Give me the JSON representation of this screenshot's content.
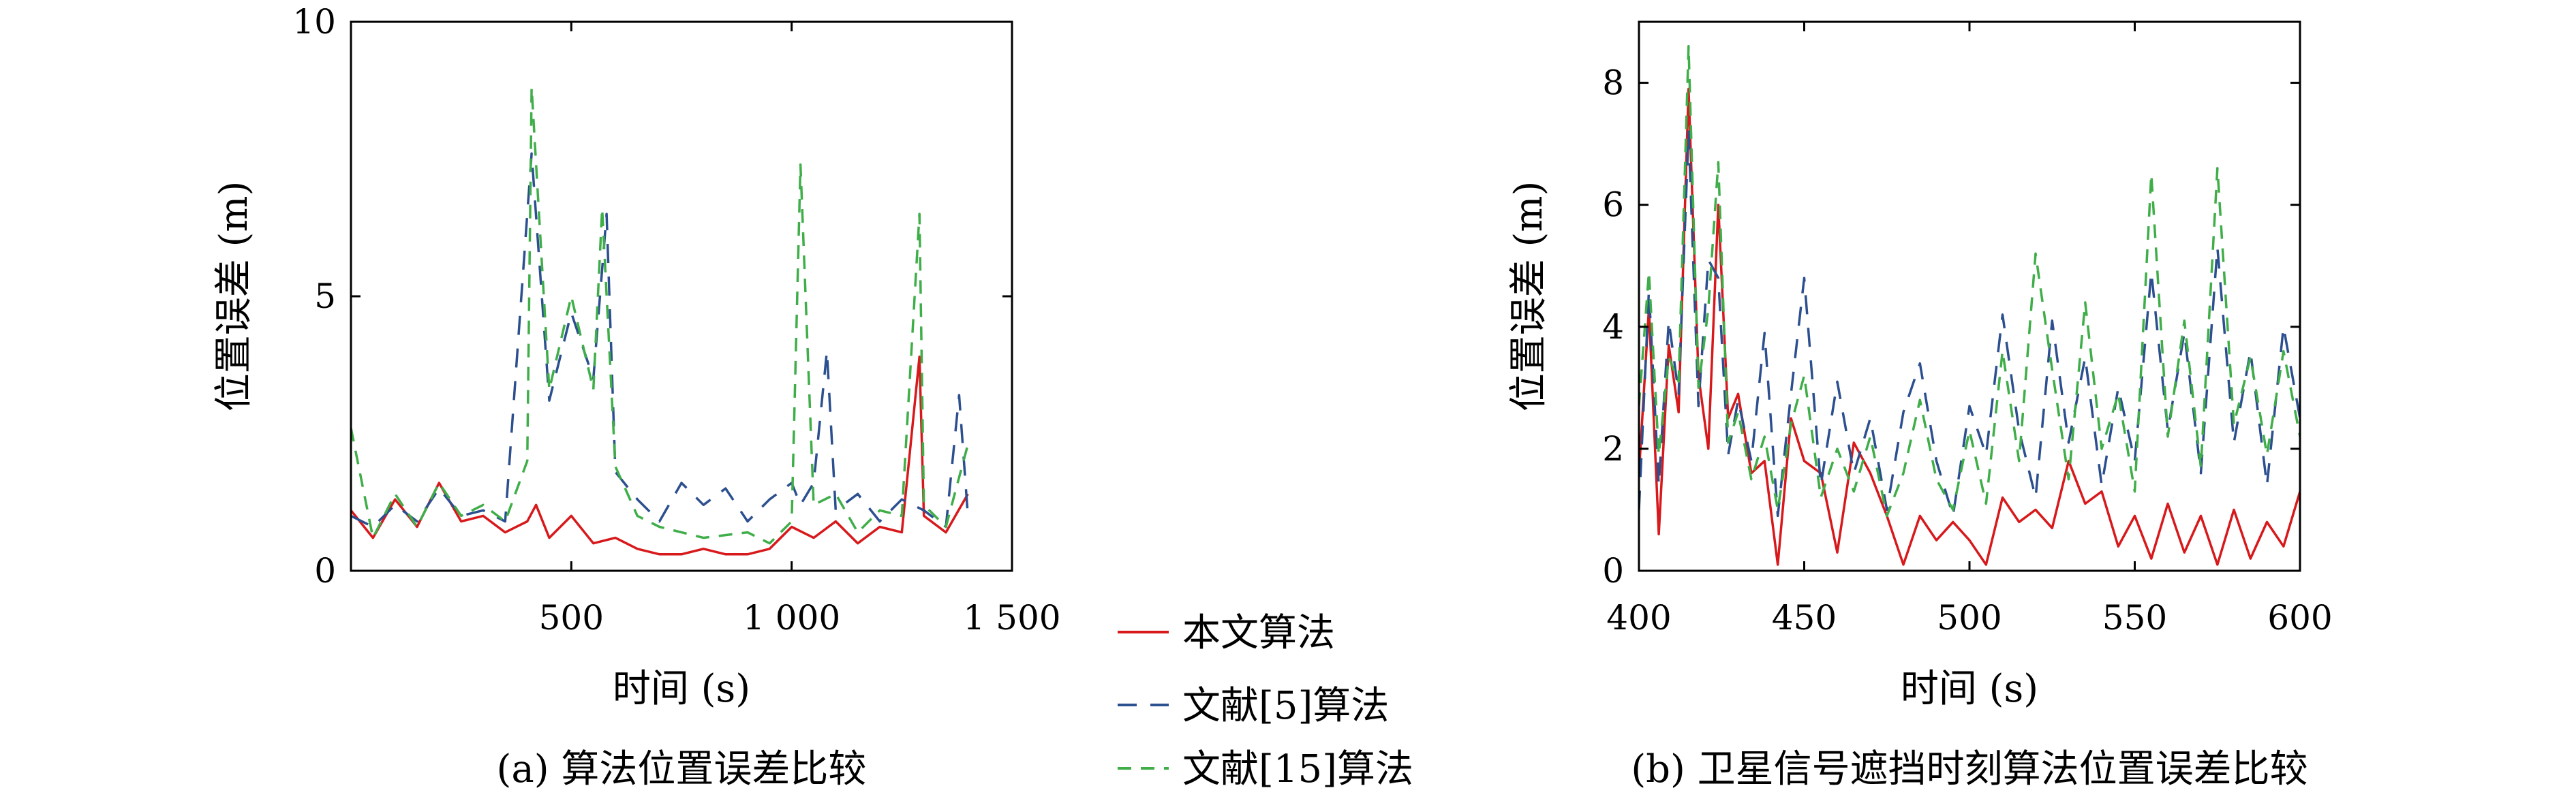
{
  "colors": {
    "proposed": "#d7191c",
    "ref5": "#2c4f8f",
    "ref15": "#3fae49"
  },
  "legend": {
    "items": [
      {
        "label": "本文算法",
        "color": "#d7191c",
        "dash": "solid"
      },
      {
        "label": "文献[5]算法",
        "color": "#2c4f8f",
        "dash": "long-dash"
      },
      {
        "label": "文献[15]算法",
        "color": "#3fae49",
        "dash": "dash"
      }
    ]
  },
  "chart_data": [
    {
      "type": "line",
      "caption": "(a) 算法位置误差比较",
      "xlabel": "时间 (s)",
      "ylabel": "位置误差 (m)",
      "xlim": [
        0,
        1500
      ],
      "ylim": [
        0,
        10
      ],
      "xticks": [
        500,
        1000,
        1500
      ],
      "xtick_labels": [
        "500",
        "1 000",
        "1 500"
      ],
      "yticks": [
        0,
        5,
        10
      ],
      "ytick_labels": [
        "0",
        "5",
        "10"
      ],
      "series": [
        {
          "name": "本文算法",
          "color": "#d7191c",
          "x": [
            0,
            50,
            100,
            150,
            200,
            250,
            300,
            350,
            400,
            420,
            450,
            500,
            550,
            600,
            650,
            700,
            750,
            800,
            850,
            900,
            950,
            1000,
            1050,
            1100,
            1150,
            1200,
            1250,
            1290,
            1300,
            1350,
            1400
          ],
          "y": [
            1.1,
            0.6,
            1.3,
            0.8,
            1.6,
            0.9,
            1.0,
            0.7,
            0.9,
            1.2,
            0.6,
            1.0,
            0.5,
            0.6,
            0.4,
            0.3,
            0.3,
            0.4,
            0.3,
            0.3,
            0.4,
            0.8,
            0.6,
            0.9,
            0.5,
            0.8,
            0.7,
            3.9,
            1.0,
            0.7,
            1.4
          ]
        },
        {
          "name": "文献[5]算法",
          "color": "#2c4f8f",
          "x": [
            0,
            50,
            100,
            150,
            200,
            250,
            300,
            350,
            410,
            450,
            500,
            550,
            580,
            600,
            650,
            700,
            750,
            800,
            850,
            900,
            950,
            1000,
            1020,
            1050,
            1080,
            1100,
            1150,
            1200,
            1250,
            1300,
            1350,
            1380,
            1400
          ],
          "y": [
            1.0,
            0.8,
            1.2,
            0.9,
            1.5,
            1.0,
            1.1,
            0.9,
            7.6,
            3.1,
            4.7,
            3.5,
            6.5,
            1.8,
            1.3,
            0.9,
            1.6,
            1.2,
            1.5,
            0.9,
            1.3,
            1.6,
            1.2,
            1.6,
            4.0,
            1.1,
            1.4,
            0.9,
            1.3,
            1.1,
            0.8,
            3.2,
            1.0
          ]
        },
        {
          "name": "文献[15]算法",
          "color": "#3fae49",
          "x": [
            0,
            50,
            100,
            150,
            200,
            250,
            300,
            350,
            400,
            410,
            450,
            500,
            550,
            570,
            600,
            650,
            700,
            800,
            900,
            950,
            1000,
            1020,
            1050,
            1100,
            1150,
            1200,
            1250,
            1290,
            1300,
            1350,
            1400
          ],
          "y": [
            2.6,
            0.6,
            1.4,
            0.8,
            1.6,
            1.0,
            1.2,
            0.9,
            2.0,
            8.8,
            3.3,
            5.0,
            3.3,
            6.6,
            1.9,
            1.0,
            0.8,
            0.6,
            0.7,
            0.5,
            0.9,
            7.4,
            1.2,
            1.4,
            0.7,
            1.1,
            1.0,
            6.5,
            1.2,
            0.8,
            2.3
          ]
        }
      ]
    },
    {
      "type": "line",
      "caption": "(b) 卫星信号遮挡时刻算法位置误差比较",
      "xlabel": "时间 (s)",
      "ylabel": "位置误差 (m)",
      "xlim": [
        400,
        600
      ],
      "ylim": [
        0,
        9
      ],
      "xticks": [
        400,
        450,
        500,
        550,
        600
      ],
      "xtick_labels": [
        "400",
        "450",
        "500",
        "550",
        "600"
      ],
      "yticks": [
        0,
        2,
        4,
        6,
        8
      ],
      "ytick_labels": [
        "0",
        "2",
        "4",
        "6",
        "8"
      ],
      "series": [
        {
          "name": "本文算法",
          "color": "#d7191c",
          "x": [
            400,
            403,
            406,
            409,
            412,
            415,
            418,
            421,
            424,
            427,
            430,
            434,
            438,
            442,
            446,
            450,
            455,
            460,
            465,
            470,
            475,
            480,
            485,
            490,
            495,
            500,
            505,
            510,
            515,
            520,
            525,
            530,
            535,
            540,
            545,
            550,
            555,
            560,
            565,
            570,
            575,
            580,
            585,
            590,
            595,
            600
          ],
          "y": [
            1.6,
            4.3,
            0.6,
            3.7,
            2.6,
            7.9,
            3.2,
            2.0,
            6.0,
            2.5,
            2.9,
            1.6,
            1.8,
            0.1,
            2.5,
            1.8,
            1.6,
            0.3,
            2.1,
            1.6,
            0.9,
            0.1,
            0.9,
            0.5,
            0.8,
            0.5,
            0.1,
            1.2,
            0.8,
            1.0,
            0.7,
            1.8,
            1.1,
            1.3,
            0.4,
            0.9,
            0.2,
            1.1,
            0.3,
            0.9,
            0.1,
            1.0,
            0.2,
            0.8,
            0.4,
            1.3
          ]
        },
        {
          "name": "文献[5]算法",
          "color": "#2c4f8f",
          "x": [
            400,
            403,
            406,
            409,
            412,
            415,
            418,
            421,
            424,
            427,
            430,
            434,
            438,
            442,
            446,
            450,
            455,
            460,
            465,
            470,
            475,
            480,
            485,
            490,
            495,
            500,
            505,
            510,
            515,
            520,
            525,
            530,
            535,
            540,
            545,
            550,
            555,
            560,
            565,
            570,
            575,
            580,
            585,
            590,
            595,
            600
          ],
          "y": [
            1.0,
            4.6,
            1.4,
            4.1,
            2.9,
            7.2,
            2.7,
            5.1,
            4.8,
            1.9,
            2.8,
            1.8,
            3.9,
            0.9,
            2.9,
            4.8,
            1.4,
            3.1,
            1.6,
            2.5,
            1.0,
            2.6,
            3.4,
            1.8,
            0.9,
            2.7,
            1.9,
            4.2,
            2.3,
            1.2,
            4.1,
            2.1,
            3.5,
            1.4,
            3.0,
            1.8,
            4.9,
            2.3,
            3.9,
            1.6,
            5.3,
            2.1,
            3.6,
            1.4,
            4.0,
            2.5
          ]
        },
        {
          "name": "文献[15]算法",
          "color": "#3fae49",
          "x": [
            400,
            403,
            406,
            409,
            412,
            415,
            418,
            421,
            424,
            427,
            430,
            434,
            438,
            442,
            446,
            450,
            455,
            460,
            465,
            470,
            475,
            480,
            485,
            490,
            495,
            500,
            505,
            510,
            515,
            520,
            525,
            530,
            535,
            540,
            545,
            550,
            555,
            560,
            565,
            570,
            575,
            580,
            585,
            590,
            595,
            600
          ],
          "y": [
            2.7,
            4.9,
            1.9,
            3.5,
            3.1,
            8.6,
            3.0,
            4.3,
            6.7,
            2.1,
            2.6,
            1.5,
            2.2,
            1.0,
            2.4,
            3.2,
            1.2,
            2.0,
            1.3,
            2.2,
            0.9,
            1.6,
            2.8,
            1.5,
            1.0,
            2.3,
            1.1,
            3.6,
            1.8,
            5.2,
            3.3,
            1.5,
            4.4,
            2.0,
            2.9,
            1.3,
            6.5,
            2.2,
            4.1,
            1.7,
            6.6,
            2.4,
            3.5,
            1.9,
            3.6,
            2.2
          ]
        }
      ]
    }
  ]
}
